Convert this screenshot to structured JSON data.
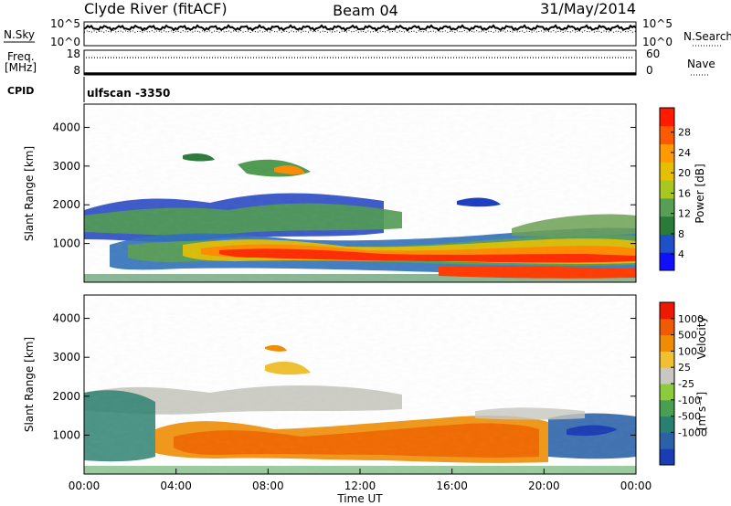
{
  "header": {
    "station": "Clyde River (fitACF)",
    "beam": "Beam 04",
    "date": "31/May/2014"
  },
  "left_labels": {
    "nsky": "N.Sky",
    "freq": "Freq.",
    "mhz": "[MHz]",
    "cpid": "CPID"
  },
  "right_labels": {
    "nsearch": "N.Search",
    "nave": "Nave"
  },
  "cpid_text": "ulfscan -3350",
  "chart_data": [
    {
      "type": "line",
      "name": "noise",
      "series": [
        {
          "name": "N.Sky",
          "style": "solid"
        },
        {
          "name": "N.Search",
          "style": "dotted"
        }
      ],
      "left_ticks": [
        "10^5",
        "10^0"
      ],
      "right_ticks": [
        "10^5",
        "10^0"
      ],
      "scale": "log",
      "level_fraction": 0.75
    },
    {
      "type": "line",
      "name": "frequency-nave",
      "series": [
        {
          "name": "Freq.",
          "style": "solid",
          "value": 8
        },
        {
          "name": "Nave",
          "style": "dotted",
          "value": 42
        }
      ],
      "left_ticks": [
        "18",
        "8"
      ],
      "right_ticks": [
        "60",
        "0"
      ],
      "left_ylim": [
        8,
        18
      ],
      "right_ylim": [
        0,
        60
      ]
    },
    {
      "type": "heatmap",
      "name": "power",
      "ylabel": "Slant Range [km]",
      "ylim": [
        0,
        4600
      ],
      "yticks": [
        "1000",
        "2000",
        "3000",
        "4000"
      ],
      "ytick_values": [
        1000,
        2000,
        3000,
        4000
      ],
      "xlim": [
        0,
        24
      ],
      "colorbar": {
        "label": "Power [dB]",
        "ticks": [
          "4",
          "8",
          "12",
          "16",
          "20",
          "24",
          "28"
        ],
        "colors": [
          "#1010ff",
          "#2050c8",
          "#2a7a3a",
          "#55a055",
          "#a8c820",
          "#e6c000",
          "#ff9a00",
          "#ff5a00",
          "#ff1a00"
        ]
      }
    },
    {
      "type": "heatmap",
      "name": "velocity",
      "ylabel": "Slant Range [km]",
      "ylim": [
        0,
        4600
      ],
      "yticks": [
        "1000",
        "2000",
        "3000",
        "4000"
      ],
      "ytick_values": [
        1000,
        2000,
        3000,
        4000
      ],
      "xlim": [
        0,
        24
      ],
      "xticks": [
        "00:00",
        "04:00",
        "08:00",
        "12:00",
        "16:00",
        "20:00",
        "00:00"
      ],
      "xtick_values": [
        0,
        4,
        8,
        12,
        16,
        20,
        24
      ],
      "xlabel": "Time UT",
      "colorbar": {
        "label": "Velocity",
        "unit": "[m s⁻¹]",
        "ticks": [
          "1000",
          "500",
          "100",
          "25",
          "-25",
          "-100",
          "-500",
          "-1000"
        ],
        "colors": [
          "#1a3cb4",
          "#2a62a8",
          "#2a8070",
          "#48a050",
          "#8ccc3c",
          "#c8c8c0",
          "#f0c030",
          "#f08c00",
          "#f05a00",
          "#ee1a00"
        ]
      }
    }
  ]
}
